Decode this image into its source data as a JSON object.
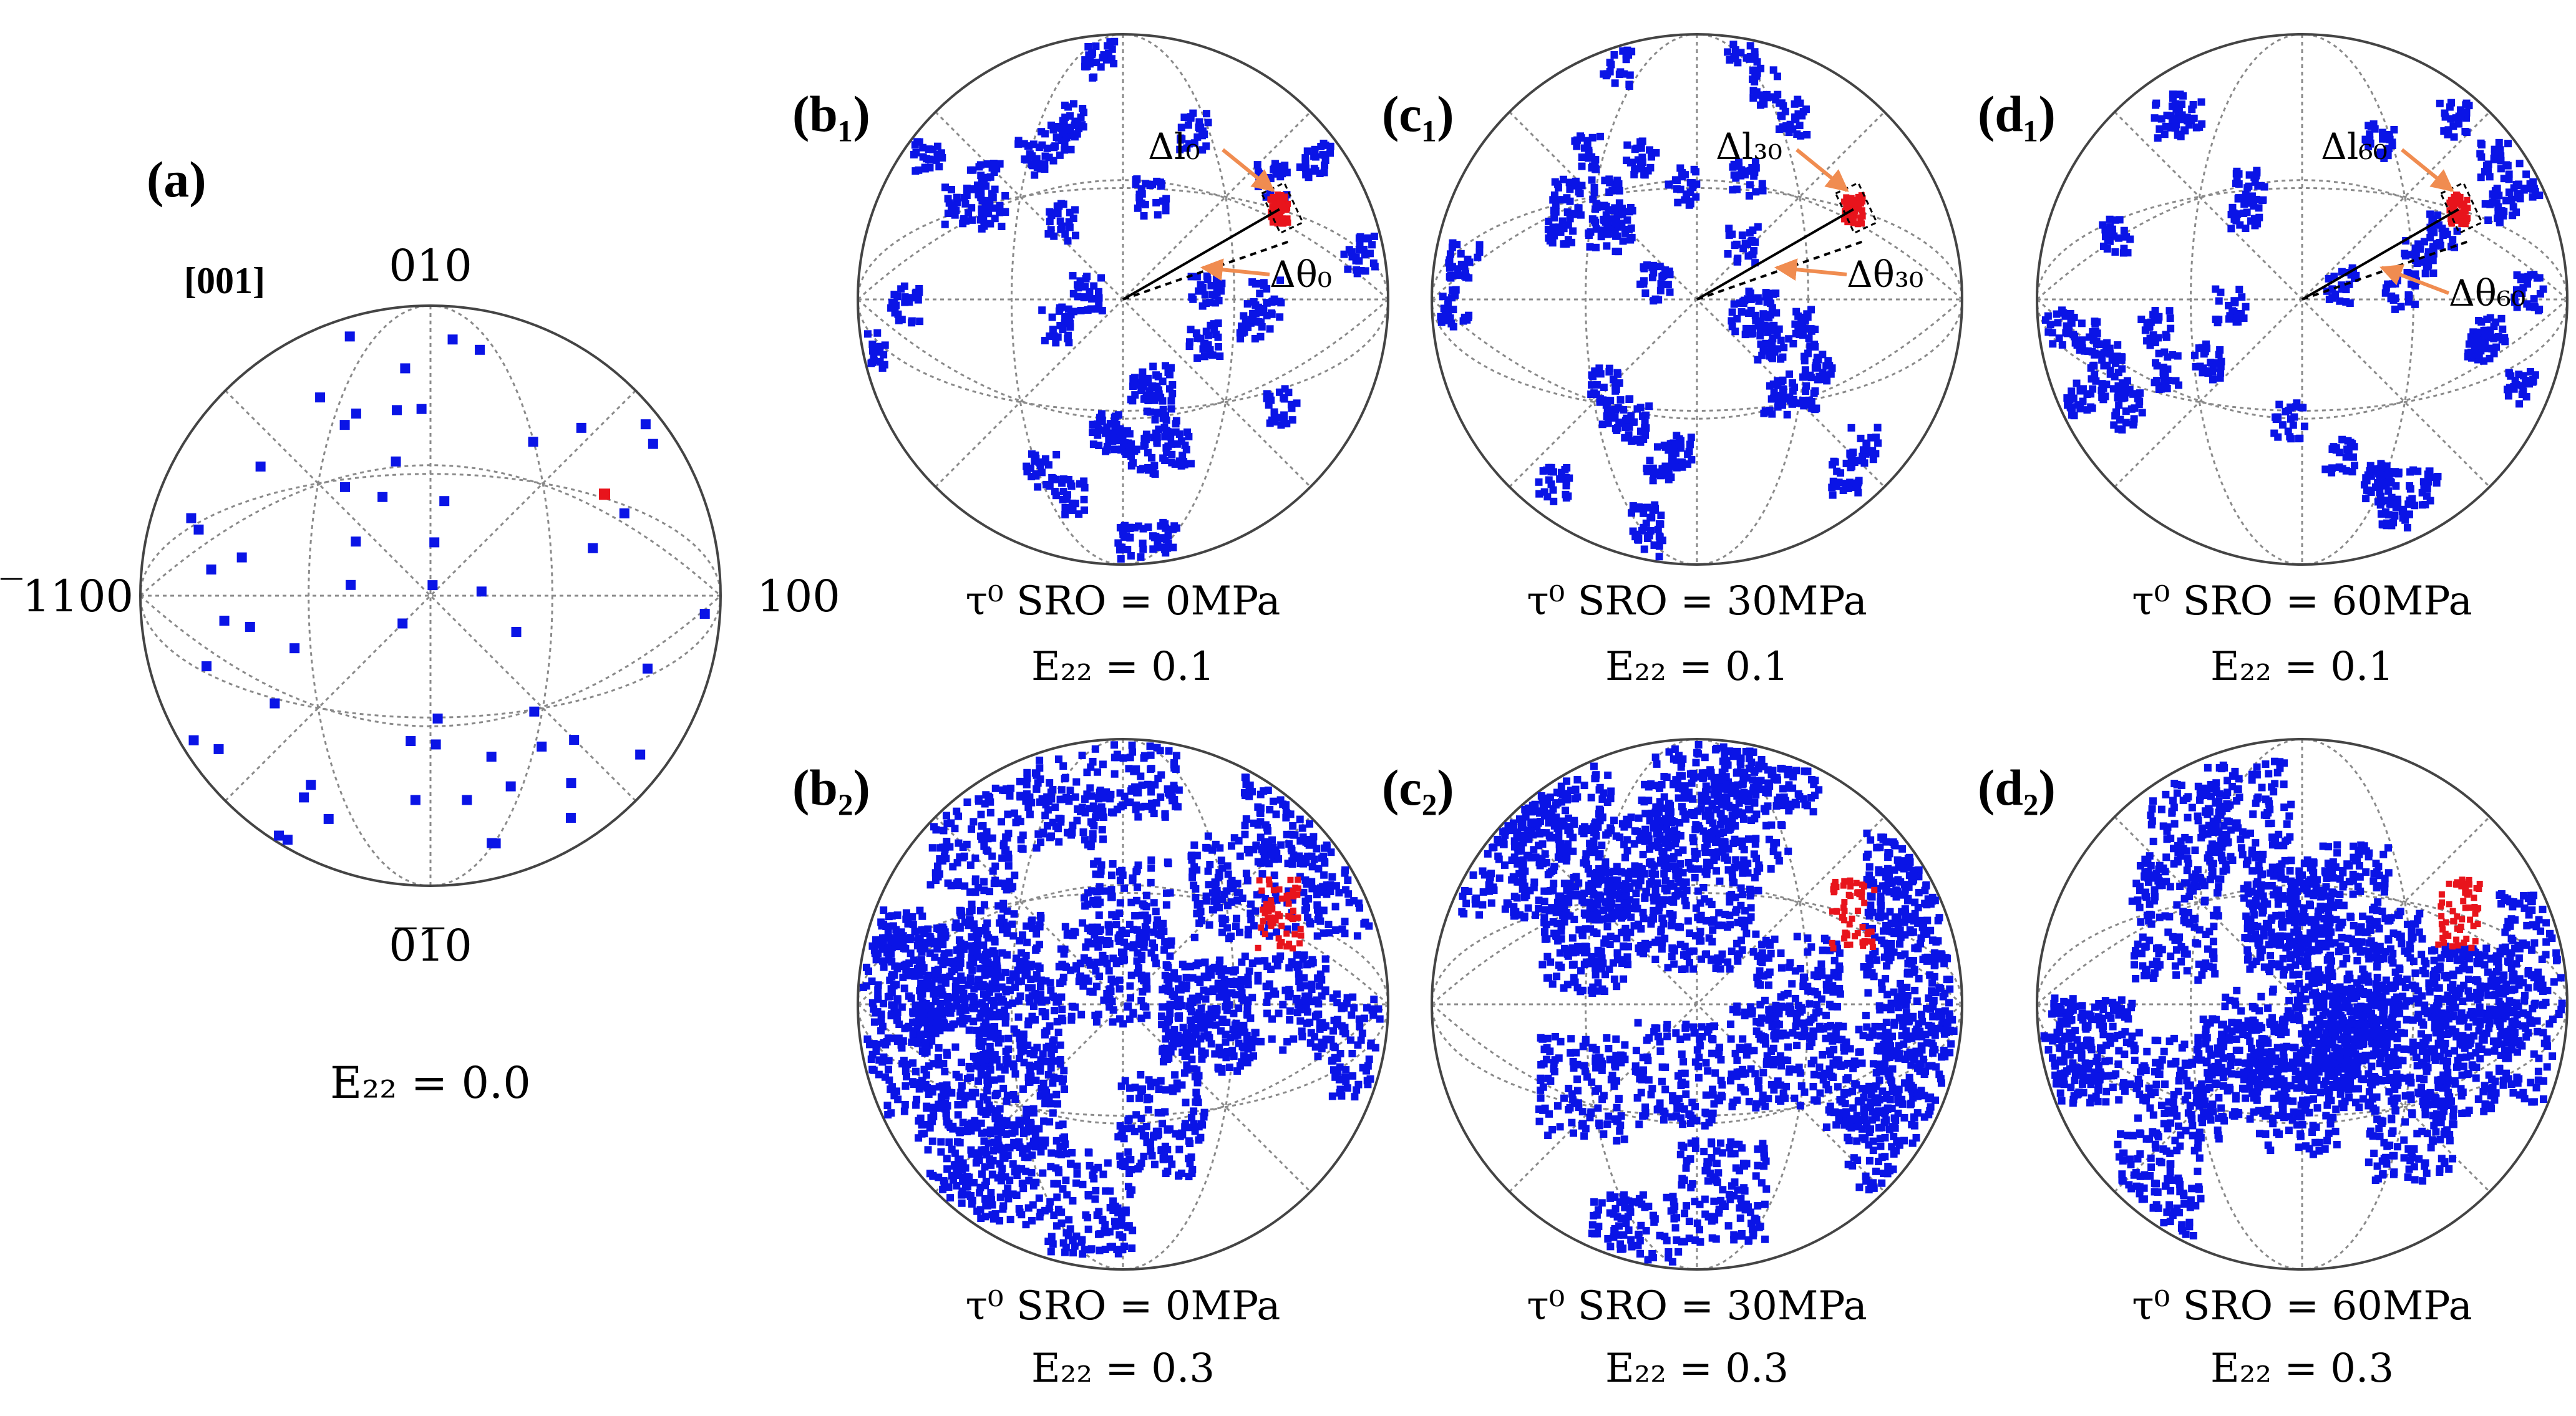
{
  "panel_a": {
    "label": "(a)",
    "projection": "[001]",
    "directions": {
      "top": "010",
      "bottom": "0̅1̅0",
      "left": "̅1100",
      "right": "100"
    },
    "strain": "E₂₂ = 0.0"
  },
  "panels": [
    {
      "id": "b1",
      "label": "(b₁)",
      "tau": "τ⁰ SRO = 0MPa",
      "strain": "E₂₂ = 0.1",
      "dl": "Δl₀",
      "dtheta": "Δθ₀"
    },
    {
      "id": "c1",
      "label": "(c₁)",
      "tau": "τ⁰ SRO = 30MPa",
      "strain": "E₂₂ = 0.1",
      "dl": "Δl₃₀",
      "dtheta": "Δθ₃₀"
    },
    {
      "id": "d1",
      "label": "(d₁)",
      "tau": "τ⁰ SRO = 60MPa",
      "strain": "E₂₂ = 0.1",
      "dl": "Δl₆₀",
      "dtheta": "Δθ₆₀"
    },
    {
      "id": "b2",
      "label": "(b₂)",
      "tau": "τ⁰ SRO = 0MPa",
      "strain": "E₂₂ = 0.3"
    },
    {
      "id": "c2",
      "label": "(c₂)",
      "tau": "τ⁰ SRO = 30MPa",
      "strain": "E₂₂ = 0.3"
    },
    {
      "id": "d2",
      "label": "(d₂)",
      "tau": "τ⁰ SRO = 60MPa",
      "strain": "E₂₂ = 0.3"
    }
  ],
  "colors": {
    "grain": "#0a14e6",
    "tracked": "#e8141c",
    "arrow": "#f08c50",
    "grid": "#8a8a8a",
    "circle": "#444444"
  }
}
